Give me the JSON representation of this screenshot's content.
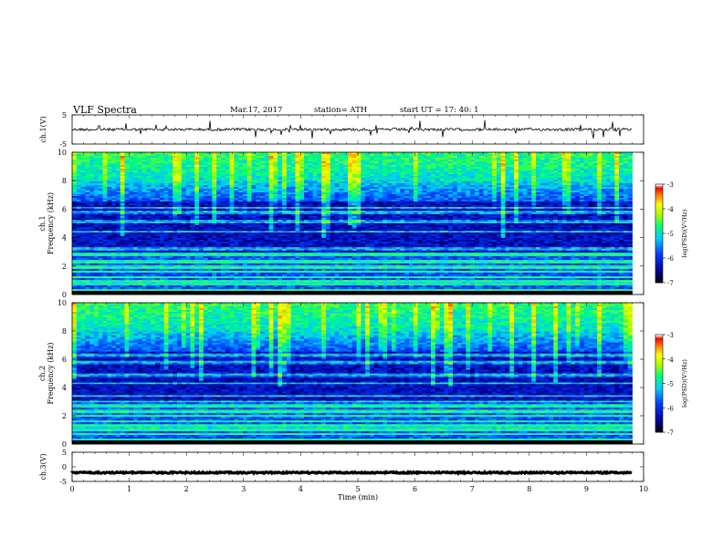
{
  "header": {
    "title": "VLF  Spectra",
    "date": "Mar.17, 2017",
    "station": "station= ATH",
    "start": "start  UT  =    17: 40: 1"
  },
  "chart_data": [
    {
      "type": "line",
      "ylabel": "ch.1(V)",
      "ylim": [
        -5,
        5
      ],
      "yticks": [
        "5",
        "-5"
      ],
      "baseline": 0,
      "trace_color": "#000000"
    },
    {
      "type": "heatmap",
      "ylabel": "ch.1\nFrequency  (kHz)",
      "ylim": [
        0,
        10
      ],
      "yticks": [
        "0",
        "2",
        "4",
        "6",
        "8",
        "10"
      ],
      "colorbar": {
        "label": "log(PSD)(V²/Hz)",
        "range": [
          -7,
          -3
        ],
        "ticks": [
          "-3",
          "-4",
          "-5",
          "-6",
          "-7"
        ],
        "colors": [
          "#000000",
          "#0000c8",
          "#0050ff",
          "#00c8ff",
          "#00ff80",
          "#a0ff00",
          "#ffff00",
          "#ff8000",
          "#ff0000",
          "#ffffff"
        ]
      },
      "bands_khz": [
        0.3,
        0.7,
        0.9,
        1.2,
        1.6,
        1.9,
        2.3,
        2.8,
        3.2,
        4.4,
        5.1,
        5.8,
        6.1
      ]
    },
    {
      "type": "heatmap",
      "ylabel": "ch.2\nFrequency  (kHz)",
      "ylim": [
        0,
        10
      ],
      "yticks": [
        "0",
        "2",
        "4",
        "6",
        "8",
        "10"
      ],
      "colorbar": {
        "label": "log(PSD)(V²/Hz)",
        "range": [
          -7,
          -3
        ],
        "ticks": [
          "-3",
          "-4",
          "-5",
          "-6",
          "-7"
        ]
      },
      "bands_khz": [
        0.3,
        0.7,
        1.0,
        1.3,
        1.6,
        2.0,
        2.3,
        2.7,
        3.0,
        3.4,
        4.3,
        4.9,
        5.8,
        6.3
      ]
    },
    {
      "type": "line",
      "ylabel": "ch.3(V)",
      "ylim": [
        -5,
        5
      ],
      "yticks": [
        "5",
        "0",
        "-5"
      ],
      "baseline": -2,
      "trace_color": "#000000"
    }
  ],
  "x_axis": {
    "label": "Time  (min)",
    "range": [
      0,
      10
    ],
    "ticks": [
      "0",
      "1",
      "2",
      "3",
      "4",
      "5",
      "6",
      "7",
      "8",
      "9",
      "10"
    ],
    "data_end": 9.8
  }
}
